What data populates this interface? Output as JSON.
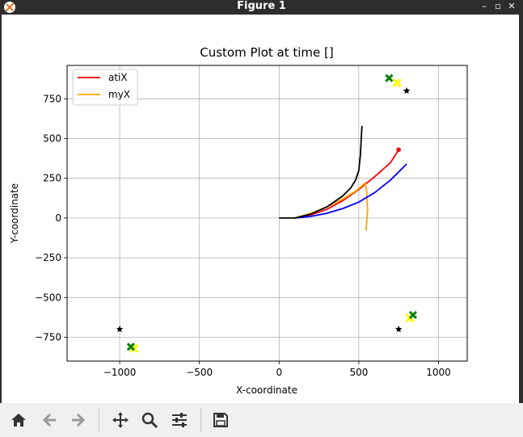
{
  "window": {
    "title": "Figure 1"
  },
  "controls": {
    "minimize": "–",
    "maximize": "▫",
    "close": "✕"
  },
  "toolbar": {
    "buttons": [
      "home-icon",
      "back-icon",
      "forward-icon",
      "pan-icon",
      "zoom-icon",
      "configure-icon",
      "save-icon"
    ]
  },
  "chart_data": {
    "type": "line",
    "title": "Custom Plot at time []",
    "xlabel": "X-coordinate",
    "ylabel": "Y-coordinate",
    "xlim": [
      -1330,
      1180
    ],
    "ylim": [
      -900,
      960
    ],
    "xticks": [
      -1000,
      -500,
      0,
      500,
      1000
    ],
    "xtick_labels": [
      "−1000",
      "−500",
      "0",
      "500",
      "1000"
    ],
    "yticks": [
      -750,
      -500,
      -250,
      0,
      250,
      500,
      750
    ],
    "ytick_labels": [
      "−750",
      "−500",
      "−250",
      "0",
      "250",
      "500",
      "750"
    ],
    "grid": true,
    "legend": {
      "placement": "top-left",
      "entries": [
        {
          "name": "atiX",
          "color": "#ff0000"
        },
        {
          "name": "myX",
          "color": "#ffa500"
        }
      ]
    },
    "series": [
      {
        "name": "atiX",
        "color": "#ff0000",
        "points": [
          [
            100,
            0
          ],
          [
            200,
            20
          ],
          [
            300,
            55
          ],
          [
            400,
            110
          ],
          [
            500,
            180
          ],
          [
            600,
            260
          ],
          [
            700,
            350
          ],
          [
            750,
            430
          ]
        ],
        "end_marker": true
      },
      {
        "name": "myX",
        "color": "#ffa500",
        "points": [
          [
            100,
            0
          ],
          [
            200,
            30
          ],
          [
            300,
            70
          ],
          [
            400,
            120
          ],
          [
            480,
            170
          ],
          [
            540,
            220
          ],
          [
            550,
            160
          ],
          [
            555,
            50
          ],
          [
            545,
            -80
          ]
        ]
      },
      {
        "name": "",
        "color": "#0000ff",
        "points": [
          [
            100,
            0
          ],
          [
            200,
            10
          ],
          [
            300,
            30
          ],
          [
            400,
            60
          ],
          [
            500,
            100
          ],
          [
            600,
            160
          ],
          [
            700,
            240
          ],
          [
            800,
            340
          ]
        ]
      },
      {
        "name": "",
        "color": "#000000",
        "points": [
          [
            0,
            0
          ],
          [
            100,
            0
          ],
          [
            200,
            25
          ],
          [
            300,
            70
          ],
          [
            400,
            140
          ],
          [
            450,
            190
          ],
          [
            480,
            240
          ],
          [
            500,
            300
          ],
          [
            510,
            400
          ],
          [
            515,
            500
          ],
          [
            520,
            580
          ]
        ]
      }
    ],
    "markers": {
      "stars": [
        [
          800,
          800
        ],
        [
          -1000,
          -700
        ],
        [
          750,
          -700
        ]
      ],
      "green_x": [
        [
          690,
          880
        ],
        [
          -930,
          -810
        ],
        [
          840,
          -610
        ]
      ],
      "yellow_x": [
        [
          740,
          850
        ],
        [
          -910,
          -820
        ],
        [
          820,
          -630
        ]
      ]
    }
  }
}
